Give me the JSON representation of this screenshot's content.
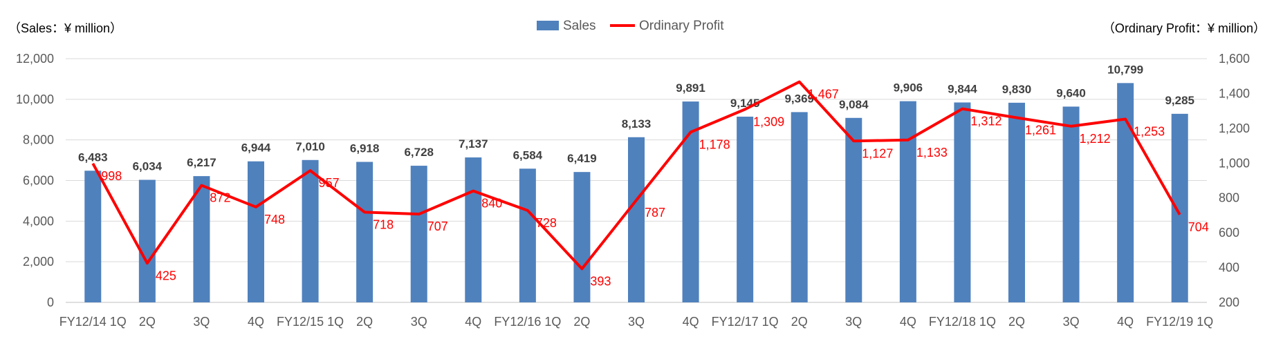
{
  "chart_data": {
    "type": "bar",
    "categories": [
      "FY12/14 1Q",
      "2Q",
      "3Q",
      "4Q",
      "FY12/15 1Q",
      "2Q",
      "3Q",
      "4Q",
      "FY12/16 1Q",
      "2Q",
      "3Q",
      "4Q",
      "FY12/17 1Q",
      "2Q",
      "3Q",
      "4Q",
      "FY12/18 1Q",
      "2Q",
      "3Q",
      "4Q",
      "FY12/19 1Q"
    ],
    "series": [
      {
        "name": "Sales",
        "type": "bar",
        "axis": "left",
        "color": "#4f81bd",
        "values": [
          6483,
          6034,
          6217,
          6944,
          7010,
          6918,
          6728,
          7137,
          6584,
          6419,
          8133,
          9891,
          9145,
          9369,
          9084,
          9906,
          9844,
          9830,
          9640,
          10799,
          9285
        ],
        "labels": [
          "6,483",
          "6,034",
          "6,217",
          "6,944",
          "7,010",
          "6,918",
          "6,728",
          "7,137",
          "6,584",
          "6,419",
          "8,133",
          "9,891",
          "9,145",
          "9,369",
          "9,084",
          "9,906",
          "9,844",
          "9,830",
          "9,640",
          "10,799",
          "9,285"
        ]
      },
      {
        "name": "Ordinary Profit",
        "type": "line",
        "axis": "right",
        "color": "#ff0000",
        "values": [
          998,
          425,
          872,
          748,
          957,
          718,
          707,
          840,
          728,
          393,
          787,
          1178,
          1309,
          1467,
          1127,
          1133,
          1312,
          1261,
          1212,
          1253,
          704
        ],
        "labels": [
          "998",
          "425",
          "872",
          "748",
          "957",
          "718",
          "707",
          "840",
          "728",
          "393",
          "787",
          "1,178",
          "1,309",
          "1,467",
          "1,127",
          "1,133",
          "1,312",
          "1,261",
          "1,212",
          "1,253",
          "704"
        ]
      }
    ],
    "y_left": {
      "label": "（Sales：¥ million）",
      "lim": [
        0,
        12000
      ],
      "ticks": [
        "0",
        "2,000",
        "4,000",
        "6,000",
        "8,000",
        "10,000",
        "12,000"
      ]
    },
    "y_right": {
      "label": "（Ordinary Profit：¥ million）",
      "lim": [
        200,
        1600
      ],
      "ticks": [
        "200",
        "400",
        "600",
        "800",
        "1,000",
        "1,200",
        "1,400",
        "1,600"
      ]
    },
    "grid": true,
    "legend": {
      "position": "top-center",
      "items": [
        "Sales",
        "Ordinary Profit"
      ]
    }
  }
}
